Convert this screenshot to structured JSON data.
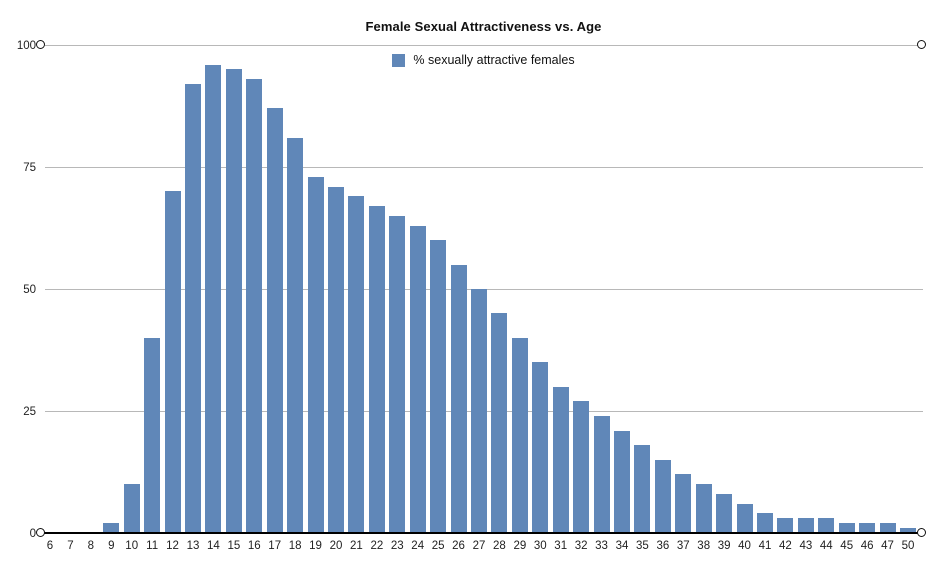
{
  "chart_data": {
    "type": "bar",
    "title": "Female Sexual Attractiveness vs. Age",
    "legend_label": "% sexually attractive females",
    "legend_position": "top-center",
    "xlabel": "",
    "ylabel": "",
    "categories": [
      "6",
      "7",
      "8",
      "9",
      "10",
      "11",
      "12",
      "13",
      "14",
      "15",
      "16",
      "17",
      "18",
      "19",
      "20",
      "21",
      "22",
      "23",
      "24",
      "25",
      "26",
      "27",
      "28",
      "29",
      "30",
      "31",
      "32",
      "33",
      "34",
      "35",
      "36",
      "37",
      "38",
      "39",
      "40",
      "41",
      "42",
      "43",
      "44",
      "45",
      "46",
      "47",
      "50"
    ],
    "values": [
      0,
      0,
      0,
      2,
      10,
      40,
      70,
      92,
      96,
      95,
      93,
      87,
      81,
      73,
      71,
      69,
      67,
      65,
      63,
      60,
      55,
      50,
      45,
      40,
      35,
      30,
      27,
      24,
      21,
      18,
      15,
      12,
      10,
      8,
      6,
      4,
      3,
      3,
      3,
      2,
      2,
      2,
      1
    ],
    "ylim": [
      0,
      100
    ],
    "yticks": [
      0,
      25,
      50,
      75,
      100
    ],
    "grid": true,
    "colors": {
      "bar": "#6087b8",
      "gridline": "#b8b8b8",
      "axis": "#000000",
      "text": "#222222",
      "background": "#ffffff"
    }
  }
}
